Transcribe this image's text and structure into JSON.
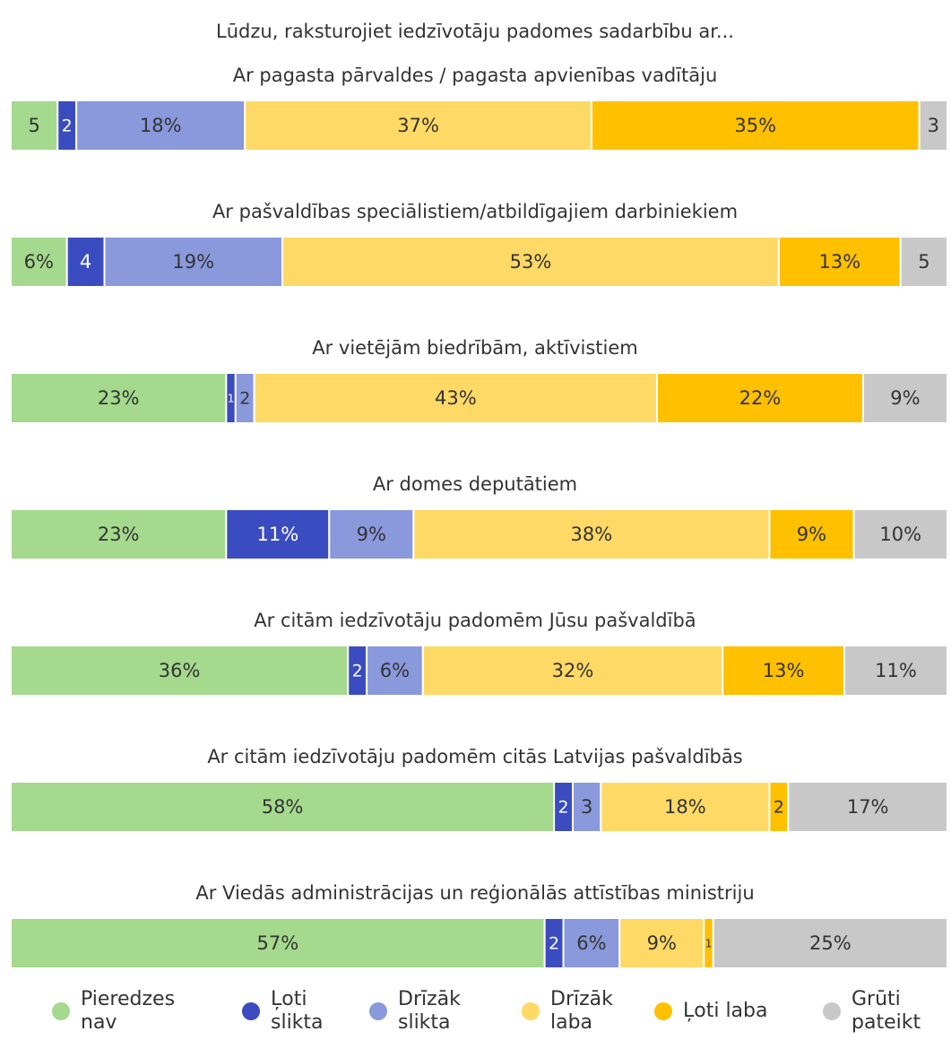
{
  "chart_data": {
    "type": "stacked-bar-horizontal",
    "title": "Lūdzu, raksturojiet iedzīvotāju padomes sadarbību ar...",
    "categories": [
      "Ar pagasta pārvaldes / pagasta apvienības vadītāju",
      "Ar pašvaldības speciālistiem/atbildīgajiem darbiniekiem",
      "Ar vietējām biedrībām, aktīvistiem",
      "Ar domes deputātiem",
      "Ar citām iedzīvotāju padomēm Jūsu pašvaldībā",
      "Ar citām iedzīvotāju padomēm citās Latvijas pašvaldībās",
      "Ar Viedās administrācijas un reģionālās attīstības ministriju"
    ],
    "series": [
      {
        "name": "Pieredzes nav",
        "color": "#a5d98d",
        "values": [
          5,
          6,
          23,
          23,
          36,
          58,
          57
        ],
        "value_labels": [
          "5",
          "6%",
          "23%",
          "23%",
          "36%",
          "58%",
          "57%"
        ]
      },
      {
        "name": "Ļoti slikta",
        "color": "#3b4cc0",
        "values": [
          2,
          4,
          1,
          11,
          2,
          2,
          2
        ],
        "value_labels": [
          "2",
          "4",
          "1",
          "11%",
          "2",
          "2",
          "2"
        ]
      },
      {
        "name": "Drīzāk slikta",
        "color": "#8a98dc",
        "values": [
          18,
          19,
          2,
          9,
          6,
          3,
          6
        ],
        "value_labels": [
          "18%",
          "19%",
          "2",
          "9%",
          "6%",
          "3",
          "6%"
        ]
      },
      {
        "name": "Drīzāk laba",
        "color": "#ffd966",
        "values": [
          37,
          53,
          43,
          38,
          32,
          18,
          9
        ],
        "value_labels": [
          "37%",
          "53%",
          "43%",
          "38%",
          "32%",
          "18%",
          "9%"
        ]
      },
      {
        "name": "Ļoti laba",
        "color": "#ffc000",
        "values": [
          35,
          13,
          22,
          9,
          13,
          2,
          1
        ],
        "value_labels": [
          "35%",
          "13%",
          "22%",
          "9%",
          "13%",
          "2",
          "1"
        ]
      },
      {
        "name": "Grūti pateikt",
        "color": "#c8c8c8",
        "values": [
          3,
          5,
          9,
          10,
          11,
          17,
          25
        ],
        "value_labels": [
          "3",
          "5",
          "9%",
          "10%",
          "11%",
          "17%",
          "25%"
        ]
      }
    ]
  }
}
